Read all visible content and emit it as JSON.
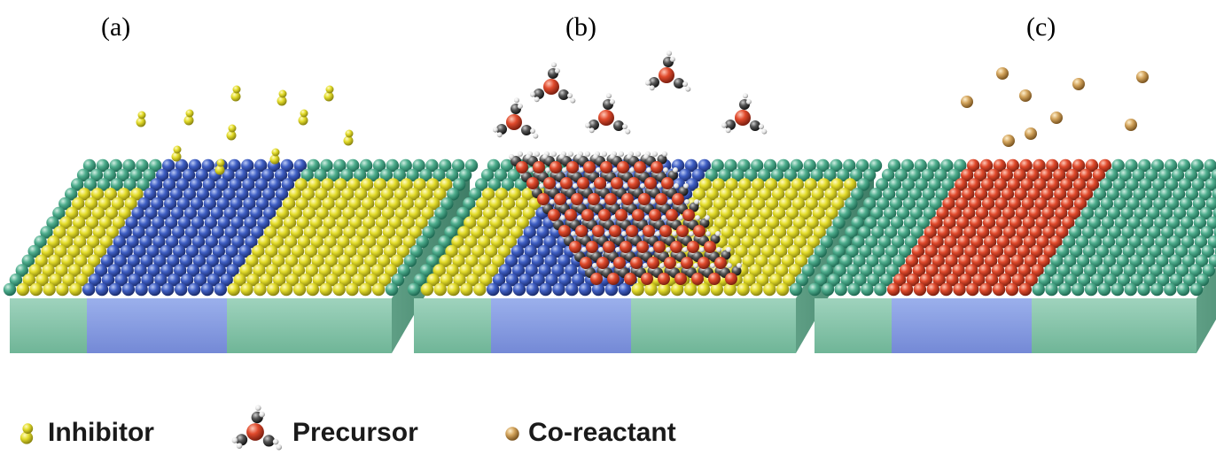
{
  "panels": [
    {
      "id": "a",
      "label": "(a)"
    },
    {
      "id": "b",
      "label": "(b)"
    },
    {
      "id": "c",
      "label": "(c)"
    }
  ],
  "legend": {
    "inhibitor": "Inhibitor",
    "precursor": "Precursor",
    "coreactant": "Co-reactant"
  },
  "colors": {
    "substrate_green": "#3f9c7e",
    "substrate_blue": "#3c58b0",
    "inhibitor_yellow": "#d8d21f",
    "precursor_red": "#d8432a",
    "coreactant_tan": "#c99a52",
    "methyl_gray": "#4a4a4a"
  }
}
